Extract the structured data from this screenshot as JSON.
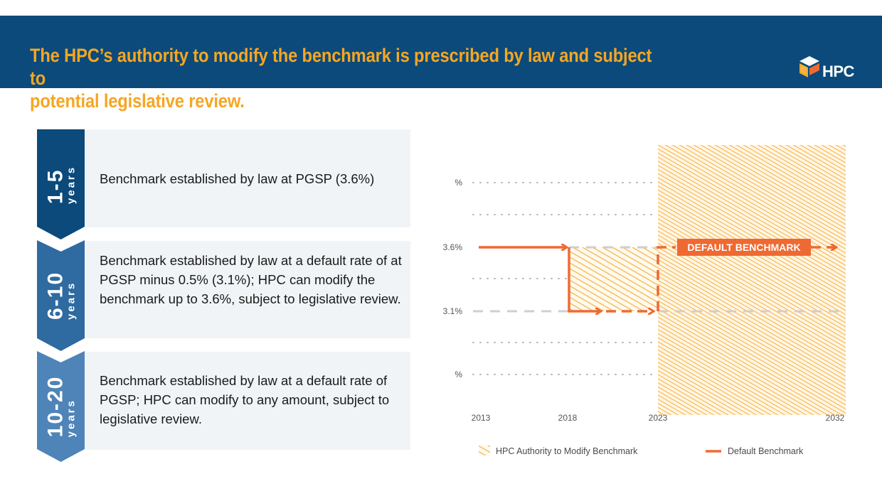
{
  "header": {
    "title_line1": "The HPC’s authority to modify the benchmark is prescribed by law and subject to",
    "title_line2": "potential legislative review.",
    "logo_text": "HPC"
  },
  "phases": [
    {
      "range": "1-5",
      "unit": "years",
      "text": "Benchmark established by law at PGSP (3.6%)"
    },
    {
      "range": "6-10",
      "unit": "years",
      "text": "Benchmark established by law at a default rate of at PGSP minus 0.5% (3.1%); HPC can modify the benchmark up to 3.6%, subject to legislative review."
    },
    {
      "range": "10-20",
      "unit": "years",
      "text": "Benchmark established by law at a default rate of PGSP; HPC can modify to any amount, subject to legislative review."
    }
  ],
  "colors": {
    "navy": "#0b4a7b",
    "orange": "#f5a623",
    "red_orange": "#ef6a32",
    "hatch": "#f7b548",
    "panel": "#f1f4f7"
  },
  "chart_data": {
    "type": "line",
    "y_ticks": [
      "%",
      "3.6%",
      "3.1%",
      "%"
    ],
    "x_ticks": [
      "2013",
      "2018",
      "2023",
      "2032"
    ],
    "annotation": "DEFAULT BENCHMARK",
    "legend": {
      "hatch": "HPC Authority to Modify Benchmark",
      "line": "Default Benchmark"
    },
    "default_benchmark": [
      {
        "from": 2013,
        "to": 2018,
        "value": 3.6
      },
      {
        "from": 2018,
        "to": 2023,
        "value": 3.1
      },
      {
        "from": 2023,
        "to": 2032,
        "value": 3.6
      }
    ],
    "authority_regions": [
      {
        "from": 2018,
        "to": 2023,
        "min": 3.1,
        "max": 3.6
      },
      {
        "from": 2023,
        "to": 2032,
        "min": "any",
        "max": "any"
      }
    ]
  }
}
